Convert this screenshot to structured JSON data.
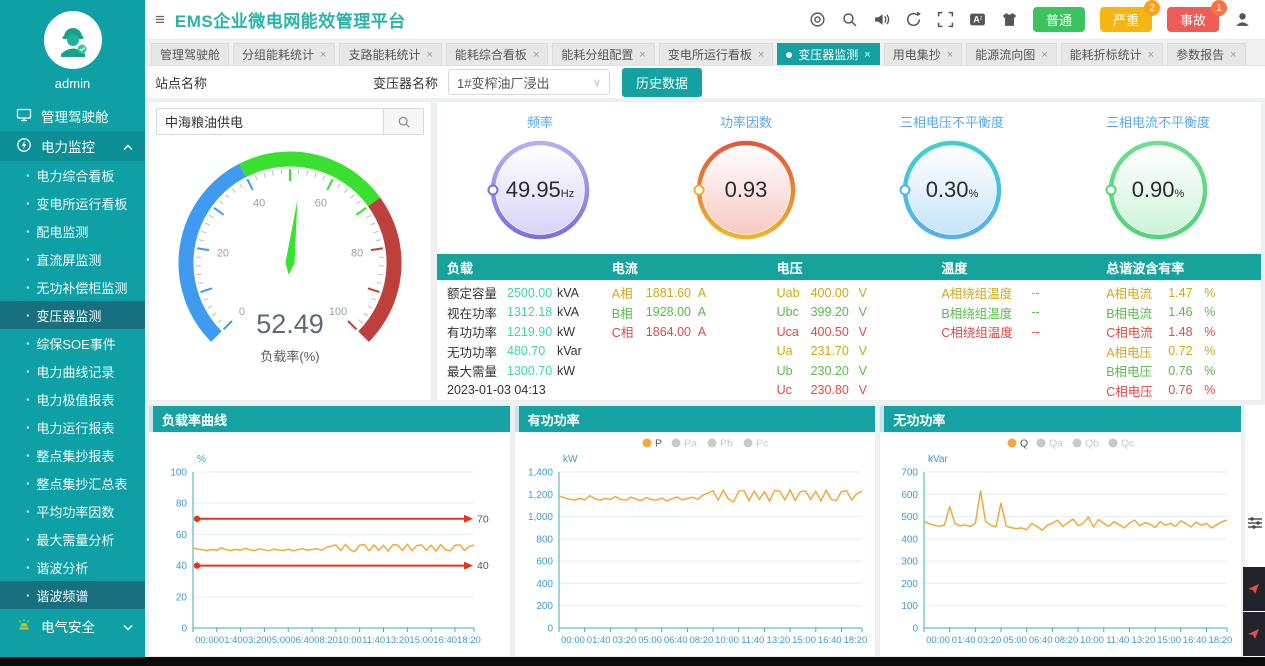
{
  "app": {
    "title": "EMS企业微电网能效管理平台"
  },
  "topbar": {
    "icons": [
      {
        "name": "support-icon"
      },
      {
        "name": "search-icon"
      },
      {
        "name": "sound-icon"
      },
      {
        "name": "refresh-icon"
      },
      {
        "name": "fullscreen-icon"
      },
      {
        "name": "translate-icon"
      },
      {
        "name": "theme-icon"
      }
    ],
    "alarm_levels": [
      {
        "label": "普通",
        "color": "#3cc25e",
        "count": "",
        "badge_color": ""
      },
      {
        "label": "严重",
        "color": "#f5b513",
        "count": "2",
        "badge_color": "#ffa113"
      },
      {
        "label": "事故",
        "color": "#ef5b56",
        "count": "1",
        "badge_color": "#ff7043"
      }
    ],
    "user_icon": "user-icon"
  },
  "tabs": [
    {
      "label": "管理驾驶舱",
      "closable": false,
      "active": false
    },
    {
      "label": "分组能耗统计",
      "closable": true,
      "active": false
    },
    {
      "label": "支路能耗统计",
      "closable": true,
      "active": false
    },
    {
      "label": "能耗综合看板",
      "closable": true,
      "active": false
    },
    {
      "label": "能耗分组配置",
      "closable": true,
      "active": false
    },
    {
      "label": "变电所运行看板",
      "closable": true,
      "active": false
    },
    {
      "label": "变压器监测",
      "closable": true,
      "active": true
    },
    {
      "label": "用电集抄",
      "closable": true,
      "active": false
    },
    {
      "label": "能源流向图",
      "closable": true,
      "active": false
    },
    {
      "label": "能耗折标统计",
      "closable": true,
      "active": false
    },
    {
      "label": "参数报告",
      "closable": true,
      "active": false
    }
  ],
  "filter": {
    "site_label": "站点名称",
    "transformer_label": "变压器名称",
    "transformer_value": "1#变榨油厂浸出",
    "history_button": "历史数据",
    "site_search_value": "中海粮油供电"
  },
  "sidebar": {
    "username": "admin",
    "items": [
      {
        "label": "管理驾驶舱",
        "icon": "dashboard-icon",
        "type": "top"
      },
      {
        "label": "电力监控",
        "icon": "power-monitor-icon",
        "type": "group",
        "expanded": true
      },
      {
        "label": "电力综合看板",
        "type": "sub"
      },
      {
        "label": "变电所运行看板",
        "type": "sub"
      },
      {
        "label": "配电监测",
        "type": "sub"
      },
      {
        "label": "直流屏监测",
        "type": "sub"
      },
      {
        "label": "无功补偿柜监测",
        "type": "sub"
      },
      {
        "label": "变压器监测",
        "type": "sub",
        "active": true
      },
      {
        "label": "综保SOE事件",
        "type": "sub"
      },
      {
        "label": "电力曲线记录",
        "type": "sub"
      },
      {
        "label": "电力极值报表",
        "type": "sub"
      },
      {
        "label": "电力运行报表",
        "type": "sub"
      },
      {
        "label": "整点集抄报表",
        "type": "sub"
      },
      {
        "label": "整点集抄汇总表",
        "type": "sub"
      },
      {
        "label": "平均功率因数",
        "type": "sub"
      },
      {
        "label": "最大需量分析",
        "type": "sub"
      },
      {
        "label": "谐波分析",
        "type": "sub"
      },
      {
        "label": "谐波频谱",
        "type": "sub",
        "active": true
      },
      {
        "label": "电气安全",
        "icon": "safety-icon",
        "type": "group",
        "expanded": false
      }
    ]
  },
  "main_gauge": {
    "value": 52.49,
    "display": "52.49",
    "label": "负载率(%)",
    "min": 0,
    "max": 100,
    "segments": [
      {
        "upto": 40,
        "color": "#3f9bf0"
      },
      {
        "upto": 70,
        "color": "#39e02f"
      },
      {
        "upto": 100,
        "color": "#bd403c"
      }
    ],
    "tick_labels": [
      0,
      20,
      40,
      60,
      80,
      100
    ],
    "needle_color": "#35e52d"
  },
  "circle_gauges": [
    {
      "title": "频率",
      "value": "49.95",
      "unit": "Hz",
      "ring": [
        "#b7aef3",
        "#7d6fe0"
      ],
      "fill": "#d8d3f8"
    },
    {
      "title": "功率因数",
      "value": "0.93",
      "unit": "",
      "ring": [
        "#e3573e",
        "#efb32a"
      ],
      "fill": "#f7c9c4"
    },
    {
      "title": "三相电压不平衡度",
      "value": "0.30",
      "unit": "%",
      "ring": [
        "#3ed0d0",
        "#57aef2"
      ],
      "fill": "#c6e4f9"
    },
    {
      "title": "三相电流不平衡度",
      "value": "0.90",
      "unit": "%",
      "ring": [
        "#6ede8f",
        "#52d477"
      ],
      "fill": "#cdf3d8"
    }
  ],
  "table": {
    "headers": [
      "负载",
      "电流",
      "电压",
      "温度",
      "总谐波含有率"
    ],
    "load_value_color": "#3fd3ae",
    "phase_colors": {
      "a": "#d0a913",
      "b": "#58bb49",
      "c": "#e24a42"
    },
    "load_rows": [
      {
        "label": "额定容量",
        "value": "2500.00",
        "unit": "kVA"
      },
      {
        "label": "视在功率",
        "value": "1312.18",
        "unit": "kVA"
      },
      {
        "label": "有功功率",
        "value": "1219.90",
        "unit": "kW"
      },
      {
        "label": "无功功率",
        "value": "480.70",
        "unit": "kVar"
      },
      {
        "label": "最大需量",
        "value": "1300.70",
        "unit": "kW"
      }
    ],
    "timestamp": "2023-01-03 04:13",
    "current_rows": [
      {
        "label": "A相",
        "value": "1881.60",
        "unit": "A",
        "phase": "a"
      },
      {
        "label": "B相",
        "value": "1928.00",
        "unit": "A",
        "phase": "b"
      },
      {
        "label": "C相",
        "value": "1864.00",
        "unit": "A",
        "phase": "c"
      }
    ],
    "voltage_rows": [
      {
        "label": "Uab",
        "value": "400.00",
        "unit": "V",
        "phase": "a"
      },
      {
        "label": "Ubc",
        "value": "399.20",
        "unit": "V",
        "phase": "b"
      },
      {
        "label": "Uca",
        "value": "400.50",
        "unit": "V",
        "phase": "c"
      },
      {
        "label": "Ua",
        "value": "231.70",
        "unit": "V",
        "phase": "a"
      },
      {
        "label": "Ub",
        "value": "230.20",
        "unit": "V",
        "phase": "b"
      },
      {
        "label": "Uc",
        "value": "230.80",
        "unit": "V",
        "phase": "c"
      }
    ],
    "temperature_rows": [
      {
        "label": "A相绕组温度",
        "value": "--",
        "unit": "",
        "phase": "a"
      },
      {
        "label": "B相绕组温度",
        "value": "--",
        "unit": "",
        "phase": "b"
      },
      {
        "label": "C相绕组温度",
        "value": "--",
        "unit": "",
        "phase": "c"
      }
    ],
    "thd_rows": [
      {
        "label": "A相电流",
        "value": "1.47",
        "unit": "%",
        "phase": "a"
      },
      {
        "label": "B相电流",
        "value": "1.46",
        "unit": "%",
        "phase": "b"
      },
      {
        "label": "C相电流",
        "value": "1.48",
        "unit": "%",
        "phase": "c"
      },
      {
        "label": "A相电压",
        "value": "0.72",
        "unit": "%",
        "phase": "a"
      },
      {
        "label": "B相电压",
        "value": "0.76",
        "unit": "%",
        "phase": "b"
      },
      {
        "label": "C相电压",
        "value": "0.76",
        "unit": "%",
        "phase": "c"
      }
    ]
  },
  "chart_data": [
    {
      "type": "line",
      "title": "负载率曲线",
      "ylabel": "%",
      "ylim": [
        0,
        100
      ],
      "ytick_step": 20,
      "x_tick_labels": [
        "00:00",
        "01:40",
        "03:20",
        "05:00",
        "06:40",
        "08:20",
        "10:00",
        "11:40",
        "13:20",
        "15:00",
        "16:40",
        "18:20"
      ],
      "x_tick_minutes": [
        0,
        100,
        200,
        300,
        400,
        500,
        600,
        700,
        800,
        900,
        1000,
        1100
      ],
      "x_total_minutes": 1180,
      "x_step_minutes": 20,
      "grid": true,
      "legend": null,
      "thresholds": [
        {
          "value": 70,
          "label": "70",
          "color": "#e8321f"
        },
        {
          "value": 40,
          "label": "40",
          "color": "#e8321f"
        }
      ],
      "series": [
        {
          "name": "负载率",
          "color": "#f2a93b",
          "values": [
            51.2,
            50.6,
            50.1,
            49.7,
            50.3,
            49.8,
            51.4,
            50.2,
            49.6,
            50.4,
            49.9,
            51.1,
            50.0,
            49.6,
            50.8,
            50.1,
            49.5,
            50.7,
            49.9,
            49.7,
            50.5,
            49.4,
            50.2,
            50.9,
            49.8,
            50.3,
            50.8,
            49.9,
            51.6,
            52.4,
            53.3,
            49.6,
            53.6,
            50.1,
            49.0,
            53.1,
            53.5,
            49.4,
            53.3,
            49.9,
            53.0,
            49.3,
            53.5,
            53.1,
            49.7,
            53.7,
            49.5,
            52.9,
            53.3,
            49.9,
            53.1,
            49.3,
            53.5,
            50.0,
            49.5,
            53.0,
            53.3,
            49.7,
            52.3,
            53.1
          ]
        }
      ]
    },
    {
      "type": "line",
      "title": "有功功率",
      "ylabel": "kW",
      "ylim": [
        0,
        1400
      ],
      "ytick_step": 200,
      "x_tick_labels": [
        "00:00",
        "01:40",
        "03:20",
        "05:00",
        "06:40",
        "08:20",
        "10:00",
        "11:40",
        "13:20",
        "15:00",
        "16:40",
        "18:20"
      ],
      "x_tick_minutes": [
        0,
        100,
        200,
        300,
        400,
        500,
        600,
        700,
        800,
        900,
        1000,
        1100
      ],
      "x_total_minutes": 1180,
      "x_step_minutes": 20,
      "grid": true,
      "legend": [
        {
          "label": "P",
          "active": true
        },
        {
          "label": "Pa",
          "active": false
        },
        {
          "label": "Pb",
          "active": false
        },
        {
          "label": "Pc",
          "active": false
        }
      ],
      "thresholds": [],
      "series": [
        {
          "name": "P",
          "color": "#f2a93b",
          "values": [
            1183,
            1169,
            1157,
            1148,
            1162,
            1150,
            1187,
            1160,
            1146,
            1164,
            1153,
            1180,
            1155,
            1146,
            1174,
            1157,
            1143,
            1171,
            1153,
            1148,
            1167,
            1141,
            1160,
            1176,
            1150,
            1162,
            1174,
            1153,
            1192,
            1211,
            1231,
            1146,
            1238,
            1157,
            1132,
            1227,
            1236,
            1141,
            1231,
            1153,
            1224,
            1139,
            1236,
            1227,
            1148,
            1241,
            1143,
            1222,
            1231,
            1153,
            1227,
            1139,
            1236,
            1155,
            1143,
            1224,
            1231,
            1148,
            1208,
            1227
          ]
        }
      ]
    },
    {
      "type": "line",
      "title": "无功功率",
      "ylabel": "kVar",
      "ylim": [
        0,
        700
      ],
      "ytick_step": 100,
      "x_tick_labels": [
        "00:00",
        "01:40",
        "03:20",
        "05:00",
        "06:40",
        "08:20",
        "10:00",
        "11:40",
        "13:20",
        "15:00",
        "16:40",
        "18:20"
      ],
      "x_tick_minutes": [
        0,
        100,
        200,
        300,
        400,
        500,
        600,
        700,
        800,
        900,
        1000,
        1100
      ],
      "x_total_minutes": 1180,
      "x_step_minutes": 20,
      "grid": true,
      "legend": [
        {
          "label": "Q",
          "active": true
        },
        {
          "label": "Qa",
          "active": false
        },
        {
          "label": "Qb",
          "active": false
        },
        {
          "label": "Qc",
          "active": false
        }
      ],
      "thresholds": [],
      "series": [
        {
          "name": "Q",
          "color": "#f2a93b",
          "values": [
            478,
            468,
            461,
            456,
            462,
            545,
            470,
            458,
            463,
            455,
            471,
            615,
            478,
            461,
            453,
            560,
            457,
            450,
            446,
            449,
            441,
            469,
            456,
            439,
            461,
            470,
            484,
            456,
            471,
            489,
            459,
            470,
            498,
            453,
            487,
            470,
            456,
            477,
            463,
            449,
            471,
            484,
            459,
            473,
            466,
            451,
            477,
            461,
            470,
            456,
            481,
            468,
            453,
            475,
            461,
            470,
            449,
            463,
            477,
            484
          ]
        }
      ]
    }
  ],
  "chart_axis_colors": {
    "axis_line": "#35b0b8",
    "tick_label": "#3a9bd5",
    "grid_line": "#e4eef6"
  }
}
